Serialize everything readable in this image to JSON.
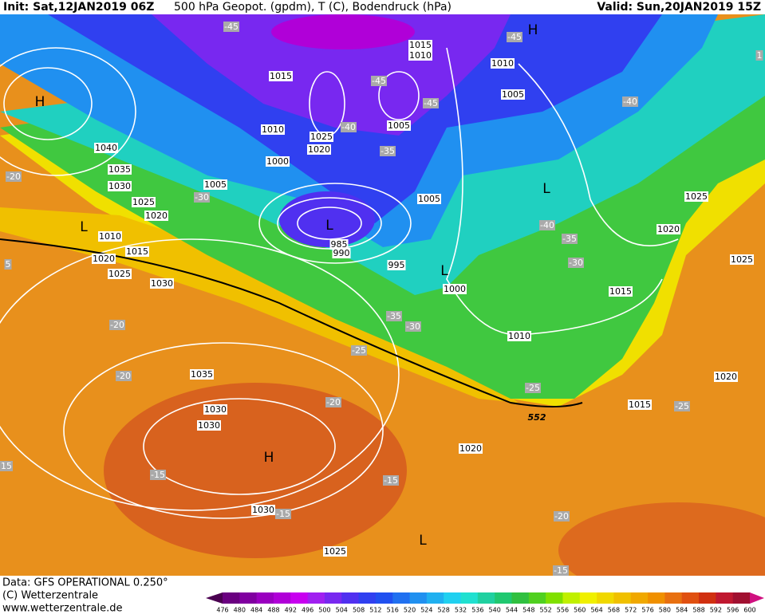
{
  "header": {
    "init": "Init: Sat,12JAN2019 06Z",
    "title": "500 hPa Geopot. (gpdm), T (C), Bodendruck (hPa)",
    "valid": "Valid: Sun,20JAN2019 15Z"
  },
  "footer": {
    "data": "Data: GFS OPERATIONAL 0.250°",
    "copyright": "(C) Wetterzentrale",
    "url": "www.wetterzentrale.de"
  },
  "map": {
    "pressure_labels": [
      "1015",
      "1010",
      "1015",
      "1010",
      "1005",
      "1010",
      "1025",
      "1020",
      "1005",
      "1040",
      "1035",
      "1000",
      "1030",
      "1005",
      "1025",
      "1020",
      "1005",
      "1025",
      "1010",
      "1020",
      "985",
      "990",
      "1015",
      "1020",
      "1025",
      "995",
      "1025",
      "1030",
      "1000",
      "1015",
      "1010",
      "1035",
      "1020",
      "1030",
      "1030",
      "1015",
      "1020",
      "1030",
      "1025"
    ],
    "temperature_labels": [
      "-45",
      "-45",
      "-45",
      "-45",
      "-40",
      "-40",
      "-35",
      "-20",
      "-30",
      "-40",
      "-35",
      "-30",
      "-35",
      "-30",
      "-25",
      "-20",
      "-20",
      "-20",
      "-25",
      "-25",
      "-15",
      "-15",
      "-15",
      "-20",
      "-15",
      "15",
      "5",
      "1"
    ],
    "centers": [
      "H",
      "H",
      "L",
      "L",
      "L",
      "L",
      "H",
      "L"
    ],
    "contour_label": "552"
  },
  "colorbar": {
    "labels": [
      476,
      480,
      484,
      488,
      492,
      496,
      500,
      504,
      508,
      512,
      516,
      520,
      524,
      528,
      532,
      536,
      540,
      544,
      548,
      552,
      556,
      560,
      564,
      568,
      572,
      576,
      580,
      584,
      588,
      592,
      596,
      600
    ],
    "colors": [
      "#4a0050",
      "#6a0080",
      "#8000a0",
      "#9a00c0",
      "#b000d8",
      "#c800f0",
      "#a020f0",
      "#7828f0",
      "#5030f0",
      "#3040f0",
      "#2050f0",
      "#2070f0",
      "#2090f0",
      "#20b0f0",
      "#20d0f0",
      "#20e0d0",
      "#20d0a0",
      "#20c870",
      "#30c040",
      "#50d020",
      "#80e000",
      "#c0f000",
      "#f0f000",
      "#f0d800",
      "#f0c000",
      "#f0a800",
      "#f09000",
      "#e87010",
      "#e05010",
      "#d03010",
      "#c01830",
      "#a01030",
      "#d01080"
    ]
  }
}
